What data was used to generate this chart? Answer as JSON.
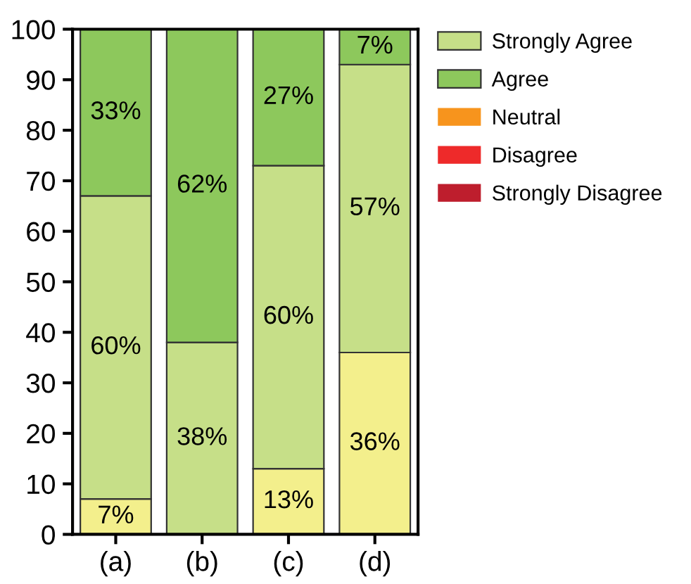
{
  "chart_data": {
    "type": "bar",
    "stacked": true,
    "categories": [
      "(a)",
      "(b)",
      "(c)",
      "(d)"
    ],
    "series": [
      {
        "color": "#f3ef8c",
        "values": [
          7,
          0,
          13,
          36
        ],
        "value_labels": [
          "7%",
          null,
          "13%",
          "36%"
        ]
      },
      {
        "name": "Strongly Agree",
        "color": "#c6df88",
        "values": [
          60,
          38,
          60,
          57
        ],
        "value_labels": [
          "60%",
          "38%",
          "60%",
          "57%"
        ]
      },
      {
        "name": "Agree",
        "color": "#8dc85c",
        "values": [
          33,
          62,
          27,
          7
        ],
        "value_labels": [
          "33%",
          "62%",
          "27%",
          "7%"
        ]
      },
      {
        "name": "Neutral",
        "color": "#f7941d",
        "values": [
          null,
          null,
          null,
          null
        ]
      },
      {
        "name": "Disagree",
        "color": "#ee2a2a",
        "values": [
          null,
          null,
          null,
          null
        ]
      },
      {
        "name": "Strongly Disagree",
        "color": "#be1e2d",
        "values": [
          null,
          null,
          null,
          null
        ]
      }
    ],
    "ylim": [
      0,
      100
    ],
    "yticks": [
      0,
      10,
      20,
      30,
      40,
      50,
      60,
      70,
      80,
      90,
      100
    ],
    "grid": false,
    "legend": "top right"
  }
}
